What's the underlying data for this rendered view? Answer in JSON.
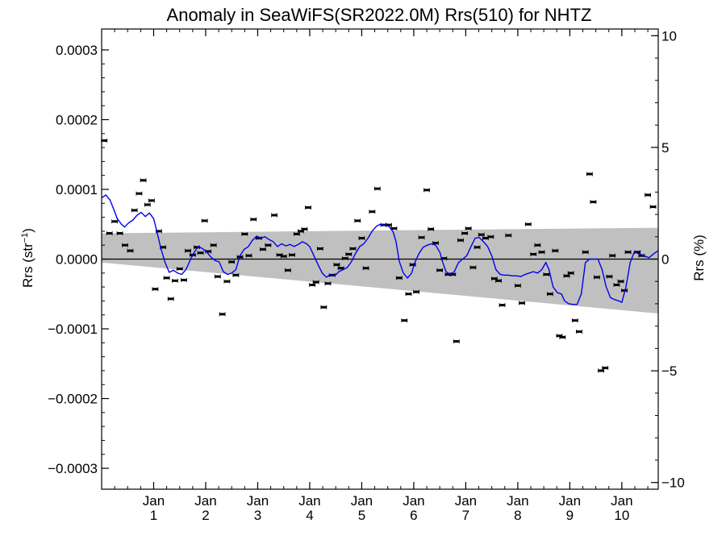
{
  "chart_data": {
    "type": "scatter",
    "title": "Anomaly in SeaWiFS(SR2022.0M) Rrs(510) for NHTZ",
    "ylabel_left": {
      "base": "Rrs (str",
      "sup": "−1",
      "end": ")"
    },
    "ylabel_right": "Rrs (%)",
    "xlim": [
      0,
      10.7
    ],
    "ylim": [
      -0.00033,
      0.00033
    ],
    "ylim_right": [
      -10.3,
      10.3
    ],
    "left_ticks": [
      {
        "value": 0.0003,
        "label": "0.0003"
      },
      {
        "value": 0.0002,
        "label": "0.0002"
      },
      {
        "value": 0.0001,
        "label": "0.0001"
      },
      {
        "value": 0.0,
        "label": "0.0000"
      },
      {
        "value": -0.0001,
        "label": "−0.0001"
      },
      {
        "value": -0.0002,
        "label": "−0.0002"
      },
      {
        "value": -0.0003,
        "label": "−0.0003"
      }
    ],
    "right_ticks": [
      {
        "value": 10,
        "label": "10"
      },
      {
        "value": 5,
        "label": "5"
      },
      {
        "value": 0,
        "label": "0"
      },
      {
        "value": -5,
        "label": "−5"
      },
      {
        "value": -10,
        "label": "−10"
      }
    ],
    "x_ticks": [
      {
        "value": 1,
        "month": "Jan",
        "year": "1"
      },
      {
        "value": 2,
        "month": "Jan",
        "year": "2"
      },
      {
        "value": 3,
        "month": "Jan",
        "year": "3"
      },
      {
        "value": 4,
        "month": "Jan",
        "year": "4"
      },
      {
        "value": 5,
        "month": "Jan",
        "year": "5"
      },
      {
        "value": 6,
        "month": "Jan",
        "year": "6"
      },
      {
        "value": 7,
        "month": "Jan",
        "year": "7"
      },
      {
        "value": 8,
        "month": "Jan",
        "year": "8"
      },
      {
        "value": 9,
        "month": "Jan",
        "year": "9"
      },
      {
        "value": 10,
        "month": "Jan",
        "year": "10"
      }
    ],
    "band": {
      "upper": [
        [
          0,
          3.7e-05
        ],
        [
          10.7,
          4.5e-05
        ]
      ],
      "lower": [
        [
          0,
          -5e-06
        ],
        [
          10.7,
          -7.8e-05
        ]
      ]
    },
    "zero_line": 0,
    "points": [
      [
        0.05,
        0.00017
      ],
      [
        0.15,
        3.7e-05
      ],
      [
        0.25,
        5.4e-05
      ],
      [
        0.35,
        3.7e-05
      ],
      [
        0.45,
        2e-05
      ],
      [
        0.55,
        1.2e-05
      ],
      [
        0.63,
        7e-05
      ],
      [
        0.72,
        9.4e-05
      ],
      [
        0.8,
        0.000113
      ],
      [
        0.88,
        7.8e-05
      ],
      [
        0.96,
        8.4e-05
      ],
      [
        1.03,
        -4.3e-05
      ],
      [
        1.1,
        4e-05
      ],
      [
        1.18,
        1.7e-05
      ],
      [
        1.25,
        -2.7e-05
      ],
      [
        1.33,
        -5.7e-05
      ],
      [
        1.41,
        -3.1e-05
      ],
      [
        1.5,
        -1.4e-05
      ],
      [
        1.58,
        -3e-05
      ],
      [
        1.66,
        1.2e-05
      ],
      [
        1.75,
        6e-06
      ],
      [
        1.83,
        1.7e-05
      ],
      [
        1.9,
        9e-06
      ],
      [
        1.98,
        5.5e-05
      ],
      [
        2.05,
        1.1e-05
      ],
      [
        2.15,
        2e-05
      ],
      [
        2.23,
        -2.5e-05
      ],
      [
        2.32,
        -7.9e-05
      ],
      [
        2.41,
        -3.2e-05
      ],
      [
        2.5,
        -4e-06
      ],
      [
        2.58,
        -2.3e-05
      ],
      [
        2.66,
        3e-06
      ],
      [
        2.75,
        3.6e-05
      ],
      [
        2.83,
        5e-06
      ],
      [
        2.92,
        5.7e-05
      ],
      [
        3.02,
        3e-05
      ],
      [
        3.1,
        1.4e-05
      ],
      [
        3.2,
        2e-05
      ],
      [
        3.32,
        6.3e-05
      ],
      [
        3.42,
        6e-06
      ],
      [
        3.5,
        4e-06
      ],
      [
        3.58,
        -1.6e-05
      ],
      [
        3.66,
        6e-06
      ],
      [
        3.75,
        3.6e-05
      ],
      [
        3.83,
        4e-05
      ],
      [
        3.9,
        4.3e-05
      ],
      [
        3.97,
        7.4e-05
      ],
      [
        4.05,
        -3.7e-05
      ],
      [
        4.12,
        -3.3e-05
      ],
      [
        4.2,
        1.5e-05
      ],
      [
        4.27,
        -6.9e-05
      ],
      [
        4.35,
        -3.5e-05
      ],
      [
        4.43,
        -2.3e-05
      ],
      [
        4.52,
        -8e-06
      ],
      [
        4.6,
        -1.3e-05
      ],
      [
        4.68,
        1e-06
      ],
      [
        4.75,
        7e-06
      ],
      [
        4.83,
        1.5e-05
      ],
      [
        4.92,
        5.5e-05
      ],
      [
        5.0,
        3e-05
      ],
      [
        5.08,
        -1.3e-05
      ],
      [
        5.2,
        6.8e-05
      ],
      [
        5.3,
        0.000101
      ],
      [
        5.42,
        4.9e-05
      ],
      [
        5.52,
        4.9e-05
      ],
      [
        5.62,
        4.4e-05
      ],
      [
        5.72,
        -2.7e-05
      ],
      [
        5.82,
        -8.8e-05
      ],
      [
        5.9,
        -5e-05
      ],
      [
        5.98,
        -8e-06
      ],
      [
        6.05,
        -4.7e-05
      ],
      [
        6.15,
        3.1e-05
      ],
      [
        6.25,
        9.9e-05
      ],
      [
        6.33,
        4.3e-05
      ],
      [
        6.42,
        2.3e-05
      ],
      [
        6.5,
        -1.6e-05
      ],
      [
        6.58,
        1e-06
      ],
      [
        6.66,
        -2.2e-05
      ],
      [
        6.75,
        -2.2e-05
      ],
      [
        6.82,
        -0.000118
      ],
      [
        6.9,
        2.7e-05
      ],
      [
        6.98,
        3.7e-05
      ],
      [
        7.05,
        4.4e-05
      ],
      [
        7.14,
        -1.2e-05
      ],
      [
        7.22,
        1.7e-05
      ],
      [
        7.3,
        3.5e-05
      ],
      [
        7.38,
        3e-05
      ],
      [
        7.48,
        3.2e-05
      ],
      [
        7.55,
        -2.8e-05
      ],
      [
        7.63,
        -3.1e-05
      ],
      [
        7.7,
        -6.6e-05
      ],
      [
        7.82,
        3.4e-05
      ],
      [
        8.0,
        -3.8e-05
      ],
      [
        8.08,
        -6.3e-05
      ],
      [
        8.2,
        5e-05
      ],
      [
        8.3,
        7e-06
      ],
      [
        8.38,
        2e-05
      ],
      [
        8.46,
        1e-05
      ],
      [
        8.55,
        -2.2e-05
      ],
      [
        8.62,
        -5e-05
      ],
      [
        8.72,
        1.2e-05
      ],
      [
        8.8,
        -0.00011
      ],
      [
        8.86,
        -0.000112
      ],
      [
        8.94,
        -2.4e-05
      ],
      [
        9.02,
        -2e-05
      ],
      [
        9.1,
        -8.8e-05
      ],
      [
        9.18,
        -0.000104
      ],
      [
        9.3,
        1e-05
      ],
      [
        9.38,
        0.000122
      ],
      [
        9.45,
        8.2e-05
      ],
      [
        9.52,
        -2.6e-05
      ],
      [
        9.6,
        -0.00016
      ],
      [
        9.68,
        -0.000156
      ],
      [
        9.76,
        -2.5e-05
      ],
      [
        9.82,
        5e-06
      ],
      [
        9.9,
        -3.7e-05
      ],
      [
        9.98,
        -3.2e-05
      ],
      [
        10.05,
        -4.5e-05
      ],
      [
        10.12,
        1e-05
      ],
      [
        10.3,
        1e-05
      ],
      [
        10.38,
        5e-06
      ],
      [
        10.5,
        9.2e-05
      ],
      [
        10.6,
        7.5e-05
      ]
    ],
    "smooth_line": [
      [
        0.0,
        8.8e-05
      ],
      [
        0.08,
        9.2e-05
      ],
      [
        0.16,
        8.5e-05
      ],
      [
        0.24,
        7e-05
      ],
      [
        0.3,
        5.8e-05
      ],
      [
        0.38,
        5e-05
      ],
      [
        0.44,
        4.6e-05
      ],
      [
        0.52,
        5.2e-05
      ],
      [
        0.6,
        5.6e-05
      ],
      [
        0.68,
        6.3e-05
      ],
      [
        0.76,
        6.7e-05
      ],
      [
        0.84,
        6.1e-05
      ],
      [
        0.92,
        6.6e-05
      ],
      [
        1.0,
        5.8e-05
      ],
      [
        1.06,
        4e-05
      ],
      [
        1.14,
        1.5e-05
      ],
      [
        1.22,
        -5e-06
      ],
      [
        1.3,
        -1.9e-05
      ],
      [
        1.38,
        -1.6e-05
      ],
      [
        1.46,
        -2e-05
      ],
      [
        1.54,
        -2.2e-05
      ],
      [
        1.62,
        -1.5e-05
      ],
      [
        1.7,
        -2e-06
      ],
      [
        1.78,
        1e-05
      ],
      [
        1.86,
        1.8e-05
      ],
      [
        1.94,
        1.5e-05
      ],
      [
        2.02,
        1e-05
      ],
      [
        2.1,
        3e-06
      ],
      [
        2.18,
        -2e-06
      ],
      [
        2.26,
        -4e-06
      ],
      [
        2.34,
        -1.8e-05
      ],
      [
        2.42,
        -2.2e-05
      ],
      [
        2.5,
        -2e-05
      ],
      [
        2.58,
        -1.5e-05
      ],
      [
        2.66,
        5e-06
      ],
      [
        2.74,
        1.4e-05
      ],
      [
        2.82,
        1.8e-05
      ],
      [
        2.9,
        2.7e-05
      ],
      [
        2.98,
        3.3e-05
      ],
      [
        3.06,
        3e-05
      ],
      [
        3.14,
        3.2e-05
      ],
      [
        3.22,
        2.8e-05
      ],
      [
        3.3,
        2.5e-05
      ],
      [
        3.38,
        1.8e-05
      ],
      [
        3.46,
        2.2e-05
      ],
      [
        3.54,
        1.9e-05
      ],
      [
        3.62,
        2.1e-05
      ],
      [
        3.7,
        1.8e-05
      ],
      [
        3.78,
        2.1e-05
      ],
      [
        3.86,
        2.5e-05
      ],
      [
        3.94,
        2.2e-05
      ],
      [
        4.0,
        1.8e-05
      ],
      [
        4.08,
        5e-06
      ],
      [
        4.16,
        -8e-06
      ],
      [
        4.24,
        -2e-05
      ],
      [
        4.32,
        -2.6e-05
      ],
      [
        4.4,
        -2.2e-05
      ],
      [
        4.48,
        -2.4e-05
      ],
      [
        4.56,
        -1.8e-05
      ],
      [
        4.64,
        -1.5e-05
      ],
      [
        4.72,
        -1.2e-05
      ],
      [
        4.8,
        -4e-06
      ],
      [
        4.88,
        8e-06
      ],
      [
        4.96,
        1.8e-05
      ],
      [
        5.04,
        2.2e-05
      ],
      [
        5.12,
        3e-05
      ],
      [
        5.2,
        4e-05
      ],
      [
        5.28,
        4.7e-05
      ],
      [
        5.36,
        5e-05
      ],
      [
        5.44,
        4.9e-05
      ],
      [
        5.52,
        4.7e-05
      ],
      [
        5.6,
        4e-05
      ],
      [
        5.66,
        2.5e-05
      ],
      [
        5.72,
        -3e-06
      ],
      [
        5.8,
        -2e-05
      ],
      [
        5.88,
        -2.7e-05
      ],
      [
        5.96,
        -2e-05
      ],
      [
        6.02,
        -5e-06
      ],
      [
        6.1,
        8e-06
      ],
      [
        6.18,
        1.7e-05
      ],
      [
        6.26,
        2e-05
      ],
      [
        6.34,
        2.2e-05
      ],
      [
        6.42,
        2e-05
      ],
      [
        6.5,
        1e-05
      ],
      [
        6.56,
        -5e-06
      ],
      [
        6.62,
        -1.8e-05
      ],
      [
        6.7,
        -2.2e-05
      ],
      [
        6.78,
        -1.8e-05
      ],
      [
        6.86,
        -5e-06
      ],
      [
        6.94,
        0.0
      ],
      [
        7.02,
        5e-06
      ],
      [
        7.1,
        1.8e-05
      ],
      [
        7.18,
        3e-05
      ],
      [
        7.26,
        3.1e-05
      ],
      [
        7.34,
        2.5e-05
      ],
      [
        7.42,
        1.8e-05
      ],
      [
        7.5,
        5e-06
      ],
      [
        7.58,
        -1.5e-05
      ],
      [
        7.66,
        -2.2e-05
      ],
      [
        7.74,
        -2.3e-05
      ],
      [
        7.82,
        -2.3e-05
      ],
      [
        7.9,
        -2.4e-05
      ],
      [
        7.98,
        -2.4e-05
      ],
      [
        8.06,
        -2.5e-05
      ],
      [
        8.14,
        -2.2e-05
      ],
      [
        8.22,
        -2e-05
      ],
      [
        8.3,
        -1.8e-05
      ],
      [
        8.38,
        -2e-05
      ],
      [
        8.46,
        -1.5e-05
      ],
      [
        8.54,
        -5e-06
      ],
      [
        8.6,
        -1.5e-05
      ],
      [
        8.68,
        -4e-05
      ],
      [
        8.76,
        -4.8e-05
      ],
      [
        8.84,
        -5e-05
      ],
      [
        8.9,
        -6e-05
      ],
      [
        8.98,
        -6.4e-05
      ],
      [
        9.06,
        -6.5e-05
      ],
      [
        9.14,
        -6.5e-05
      ],
      [
        9.22,
        -5e-05
      ],
      [
        9.3,
        -5e-06
      ],
      [
        9.38,
        0.0
      ],
      [
        9.46,
        0.0
      ],
      [
        9.54,
        0.0
      ],
      [
        9.62,
        -1.5e-05
      ],
      [
        9.7,
        -4e-05
      ],
      [
        9.78,
        -5.5e-05
      ],
      [
        9.86,
        -5.8e-05
      ],
      [
        9.94,
        -6e-05
      ],
      [
        10.0,
        -6.2e-05
      ],
      [
        10.08,
        -4e-05
      ],
      [
        10.16,
        -5e-06
      ],
      [
        10.24,
        1e-05
      ],
      [
        10.32,
        8e-06
      ],
      [
        10.42,
        5e-06
      ],
      [
        10.52,
        2e-06
      ],
      [
        10.62,
        8e-06
      ],
      [
        10.7,
        1.2e-05
      ]
    ],
    "colors": {
      "band": "#c0c0c0",
      "smooth_line": "#0000ee",
      "points": "#000000",
      "zero_line": "#000000"
    }
  }
}
